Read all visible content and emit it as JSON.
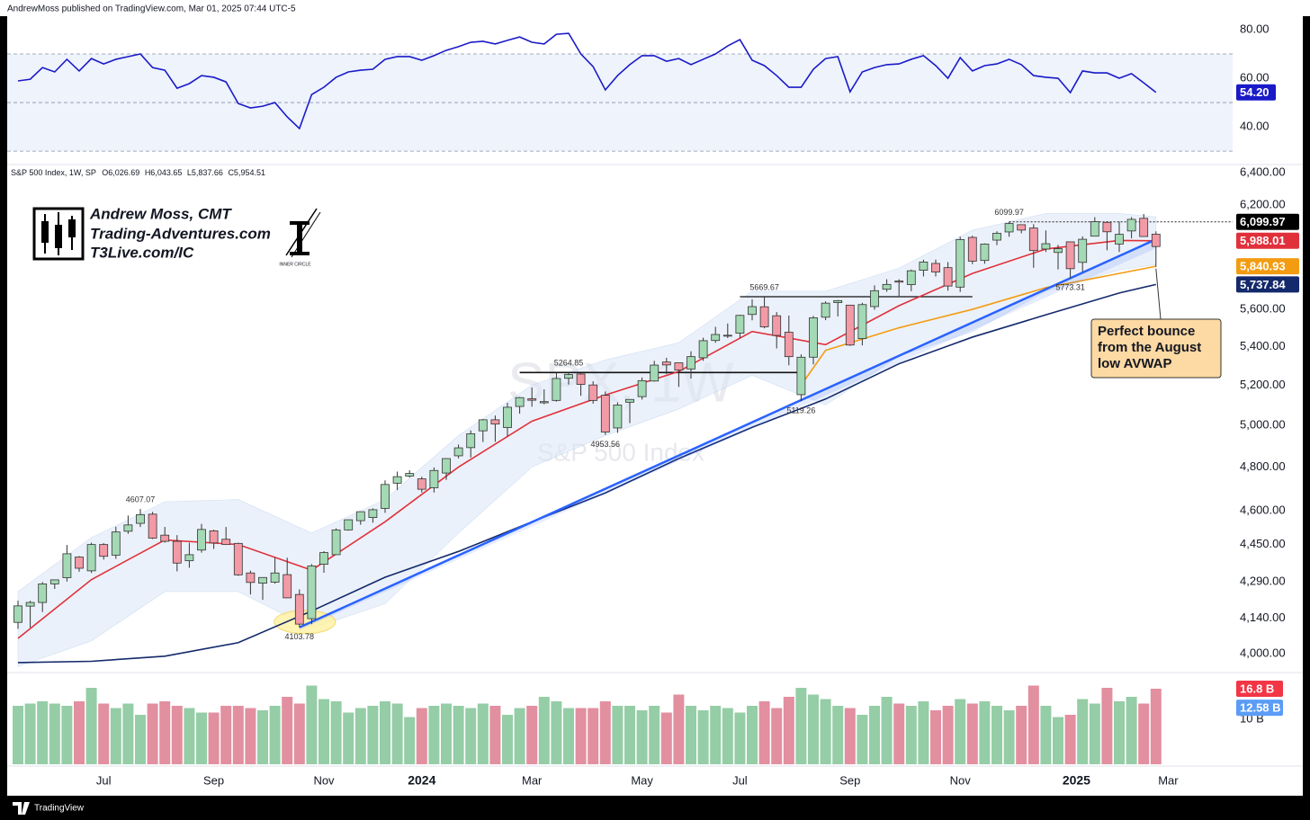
{
  "header": "AndrewMoss published on TradingView.com, Mar 01, 2025 07:44 UTC-5",
  "footer": "TradingView",
  "branding": {
    "name": "Andrew Moss, CMT",
    "site": "Trading-Adventures.com",
    "link": "T3Live.com/IC",
    "logo_text": "INNER CIRCLE"
  },
  "chart_data": [
    {
      "type": "line",
      "color": "#1a1ac8",
      "values": [
        58.9,
        59.6,
        64.4,
        62.6,
        67.8,
        63,
        68.1,
        65.9,
        67.8,
        68.9,
        70,
        64.4,
        63.3,
        55.9,
        57.8,
        61.1,
        60.4,
        58.5,
        49.6,
        47.8,
        48.5,
        50,
        44.1,
        39.3,
        53.3,
        56.3,
        60.4,
        62.6,
        63.3,
        63.7,
        67.8,
        68.9,
        68.9,
        67.4,
        69.3,
        71.5,
        73,
        74.8,
        75.2,
        74.1,
        75.6,
        77,
        74.8,
        74.1,
        78.1,
        78.5,
        70,
        64.8,
        55.2,
        61.1,
        65.6,
        69.3,
        69.3,
        67,
        68.1,
        65.6,
        67.8,
        70,
        73.3,
        75.9,
        67.4,
        65.2,
        61.1,
        56.3,
        56.3,
        63.7,
        68.1,
        68.9,
        54.4,
        62.6,
        64.4,
        65.6,
        65.9,
        67.8,
        69.3,
        65.2,
        60,
        68.5,
        63,
        65.2,
        65.9,
        67.8,
        65.6,
        61.1,
        60.4,
        60,
        54.1,
        63,
        62.2,
        62.2,
        60,
        61.9,
        58.1,
        54.2
      ],
      "last_label": "54.20",
      "levels": [
        70,
        50,
        30
      ],
      "ylim": [
        25.6,
        84.8
      ],
      "yticks": [
        {
          "value": 80,
          "label": "80.00"
        },
        {
          "value": 60,
          "label": "60.00"
        },
        {
          "value": 40,
          "label": "40.00"
        }
      ]
    },
    {
      "type": "candlestick",
      "symbol_label": "S&P 500 Index, 1W, SP",
      "ohlc_labels": [
        "O6,026.69",
        "H6,043.65",
        "L5,837.66",
        "C5,954.51"
      ],
      "watermark": "SPX, 1W",
      "watermark_sub": "S&P 500 Index",
      "up_color": "#a3d9b4",
      "down_color": "#f29aa6",
      "open": [
        4124,
        4190,
        4205,
        4282,
        4308,
        4396,
        4337,
        4450,
        4404,
        4508,
        4543,
        4584,
        4491,
        4464,
        4380,
        4426,
        4510,
        4473,
        4455,
        4328,
        4285,
        4289,
        4321,
        4238,
        4139,
        4365,
        4406,
        4514,
        4555,
        4569,
        4610,
        4725,
        4758,
        4745,
        4704,
        4772,
        4853,
        4892,
        4973,
        5027,
        4989,
        5093,
        5131,
        5111,
        5123,
        5235,
        5257,
        5201,
        5149,
        4987,
        5114,
        5142,
        5221,
        5319,
        5315,
        5283,
        5341,
        5432,
        5460,
        5471,
        5572,
        5614,
        5565,
        5476,
        5152,
        5344,
        5557,
        5637,
        5623,
        5442,
        5615,
        5711,
        5757,
        5737,
        5818,
        5857,
        5833,
        5723,
        6008,
        5874,
        5992,
        6040,
        6083,
        6063,
        5940,
        5920,
        5982,
        5863,
        6015,
        6097,
        5969,
        6046,
        6121,
        6026.69
      ],
      "high": [
        4212,
        4212,
        4290,
        4300,
        4448,
        4400,
        4458,
        4456,
        4528,
        4578,
        4607.07,
        4594,
        4527,
        4491,
        4458,
        4541,
        4515,
        4527,
        4458,
        4338,
        4310,
        4393,
        4393,
        4259,
        4366,
        4421,
        4521,
        4560,
        4595,
        4610,
        4738,
        4779,
        4785,
        4755,
        4798,
        4842,
        4907,
        4975,
        5030,
        5048,
        5111,
        5140,
        5189,
        5179,
        5262,
        5264.85,
        5263,
        5220,
        5168,
        5114,
        5128,
        5239,
        5325,
        5341,
        5315,
        5375,
        5447,
        5505,
        5523,
        5570,
        5655,
        5669.67,
        5585,
        5566,
        5359,
        5564,
        5644,
        5651,
        5623,
        5636,
        5733,
        5767,
        5767,
        5822,
        5878,
        5879,
        5865,
        6012,
        6018,
        5973,
        6044,
        6099.97,
        6085,
        6086,
        6049,
        5964,
        5982,
        6014,
        6128,
        6103,
        6101,
        6128,
        6147,
        6043.65
      ],
      "low": [
        4098,
        4103,
        4166,
        4261,
        4292,
        4333,
        4328,
        4385,
        4388,
        4497,
        4527,
        4474,
        4458,
        4335,
        4350,
        4415,
        4431,
        4448,
        4316,
        4238,
        4216,
        4283,
        4223,
        4103.78,
        4117,
        4329,
        4406,
        4511,
        4537,
        4546,
        4590,
        4693,
        4751,
        4682,
        4682,
        4740,
        4841,
        4845,
        4919,
        4920,
        4946,
        5057,
        5092,
        5104,
        5117,
        5203,
        5146,
        5107,
        4953.56,
        4963,
        5011,
        5127,
        5218,
        5257,
        5191,
        5234,
        5325,
        5420,
        5445,
        5446,
        5540,
        5497,
        5390,
        5302,
        5119.26,
        5307,
        5541,
        5561,
        5403,
        5406,
        5598,
        5697,
        5674,
        5700,
        5783,
        5783,
        5703,
        5696,
        5853,
        5855,
        5963,
        6012,
        6032,
        5832,
        5923,
        5823,
        5773.31,
        5810,
        6015,
        5933,
        5923,
        6003,
        6014,
        5837.66
      ],
      "close": [
        4191,
        4205,
        4282,
        4299,
        4410,
        4348,
        4450,
        4399,
        4505,
        4536,
        4582,
        4478,
        4464,
        4370,
        4406,
        4516,
        4457,
        4450,
        4320,
        4288,
        4309,
        4328,
        4224,
        4117,
        4358,
        4415,
        4514,
        4559,
        4595,
        4604,
        4719,
        4755,
        4770,
        4697,
        4784,
        4840,
        4891,
        4959,
        5027,
        5006,
        5089,
        5137,
        5124,
        5117,
        5234,
        5254,
        5204,
        5123,
        4967,
        5100,
        5128,
        5223,
        5303,
        5304,
        5277,
        5347,
        5431,
        5464,
        5460,
        5567,
        5615,
        5505,
        5459,
        5347,
        5344,
        5554,
        5634,
        5648,
        5408,
        5626,
        5703,
        5738,
        5751,
        5815,
        5865,
        5808,
        5729,
        5995,
        5870,
        5969,
        6032,
        6090,
        6051,
        5931,
        5971,
        5942,
        5827,
        5997,
        6101,
        6041,
        6026,
        6115,
        6013,
        5954.51
      ],
      "high_line_label": "6,099.97",
      "lines": [
        {
          "color": "#e0313b",
          "x": [
            0,
            6,
            12,
            18,
            24,
            30,
            36,
            42,
            48,
            54,
            60,
            66,
            72,
            78,
            84,
            90,
            93
          ],
          "values": [
            4060,
            4300,
            4470,
            4450,
            4340,
            4550,
            4800,
            5020,
            5150,
            5270,
            5480,
            5410,
            5620,
            5800,
            5940,
            5990,
            5988.01
          ],
          "end_label": "5,988.01"
        },
        {
          "color": "#f39c12",
          "x": [
            64,
            66,
            72,
            78,
            84,
            90,
            93
          ],
          "values": [
            5200,
            5380,
            5500,
            5600,
            5720,
            5800,
            5840.93
          ],
          "end_label": "5,840.93"
        },
        {
          "color": "#13296b",
          "x": [
            0,
            6,
            12,
            18,
            24,
            30,
            36,
            42,
            48,
            54,
            60,
            66,
            72,
            78,
            84,
            90,
            93
          ],
          "values": [
            3965,
            3970,
            3990,
            4043,
            4170,
            4310,
            4420,
            4550,
            4680,
            4840,
            4990,
            5130,
            5310,
            5450,
            5570,
            5690,
            5737.84
          ],
          "end_label": "5,737.84"
        }
      ],
      "band": {
        "color": "#dbe7f7",
        "x": [
          0,
          6,
          12,
          18,
          24,
          30,
          36,
          42,
          48,
          54,
          60,
          66,
          72,
          78,
          84,
          90,
          93
        ],
        "upper": [
          4250,
          4480,
          4640,
          4650,
          4500,
          4650,
          4950,
          5200,
          5330,
          5420,
          5700,
          5700,
          5830,
          6050,
          6150,
          6150,
          6130
        ],
        "lower": [
          3950,
          4050,
          4250,
          4250,
          4100,
          4200,
          4500,
          4800,
          4950,
          5080,
          5250,
          5100,
          5350,
          5480,
          5700,
          5820,
          5850
        ]
      },
      "trendline_color": "#2962ff",
      "annotation": [
        "Perfect bounce",
        "from the August",
        "low AVWAP"
      ],
      "log_scale": true,
      "ylim": [
        3937,
        6440
      ],
      "yticks": [
        {
          "value": 4000,
          "label": "4,000.00"
        },
        {
          "value": 4140,
          "label": "4,140.00"
        },
        {
          "value": 4290,
          "label": "4,290.00"
        },
        {
          "value": 4450,
          "label": "4,450.00"
        },
        {
          "value": 4600,
          "label": "4,600.00"
        },
        {
          "value": 4800,
          "label": "4,800.00"
        },
        {
          "value": 5000,
          "label": "5,000.00"
        },
        {
          "value": 5200,
          "label": "5,200.00"
        },
        {
          "value": 5400,
          "label": "5,400.00"
        },
        {
          "value": 5600,
          "label": "5,600.00"
        },
        {
          "value": 6200,
          "label": "6,200.00"
        },
        {
          "value": 6400,
          "label": "6,400.00"
        }
      ]
    },
    {
      "type": "bar",
      "values": [
        13,
        13.5,
        14,
        13.5,
        13,
        14,
        17,
        13.5,
        12.5,
        13.5,
        11,
        13.5,
        14,
        13,
        12.5,
        11.5,
        11.5,
        13,
        13,
        12.5,
        12,
        13,
        15,
        13.5,
        17.5,
        14.5,
        14,
        11.5,
        12.5,
        13,
        14,
        13.5,
        10.5,
        12.5,
        13,
        13.5,
        13,
        12.5,
        13.5,
        13,
        11,
        12.5,
        13,
        15,
        14,
        12.5,
        12.5,
        12.5,
        14,
        13,
        13,
        12,
        13,
        11.5,
        15.5,
        13,
        12,
        13,
        12.5,
        11.5,
        13,
        14,
        12.5,
        15,
        17,
        15.5,
        14.5,
        13,
        12.5,
        11,
        13,
        15,
        13.5,
        13,
        14,
        12,
        13,
        14.5,
        13.5,
        14,
        13,
        12,
        13,
        17.5,
        13,
        10.5,
        11,
        14.5,
        13.5,
        17,
        14,
        15,
        13.5,
        16.8
      ],
      "last_label": "16.8 B",
      "ma_value": 12.58,
      "ma_label": "12.58 B",
      "ylim": [
        0,
        19.6
      ],
      "yticks": [
        {
          "value": 10,
          "label": "10 B"
        }
      ],
      "xticks": [
        {
          "value": 7,
          "label": "Jul"
        },
        {
          "value": 16,
          "label": "Sep"
        },
        {
          "value": 25,
          "label": "Nov"
        },
        {
          "value": 33,
          "label": "2024"
        },
        {
          "value": 42,
          "label": "Mar"
        },
        {
          "value": 51,
          "label": "May"
        },
        {
          "value": 59,
          "label": "Jul"
        },
        {
          "value": 68,
          "label": "Sep"
        },
        {
          "value": 77,
          "label": "Nov"
        },
        {
          "value": 86.5,
          "label": "2025"
        },
        {
          "value": 94,
          "label": "Mar"
        }
      ]
    }
  ]
}
